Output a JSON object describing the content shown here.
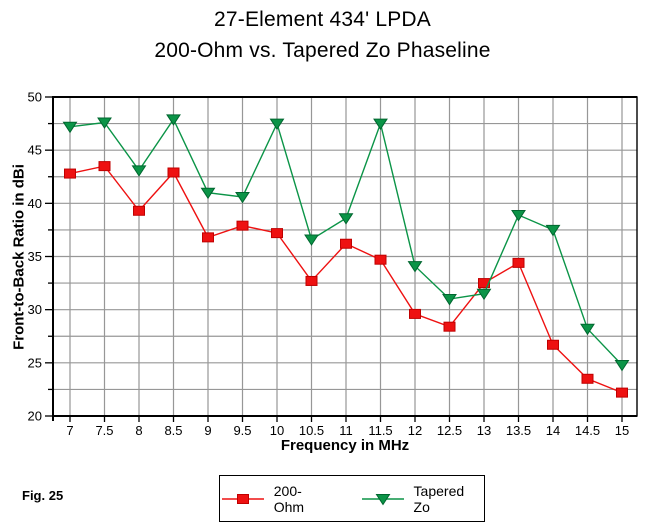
{
  "title": {
    "line1": "27-Element 434' LPDA",
    "line2": "200-Ohm vs. Tapered Zo Phaseline"
  },
  "fig_label": "Fig. 25",
  "chart_data": {
    "type": "line",
    "x": [
      7,
      7.5,
      8,
      8.5,
      9,
      9.5,
      10,
      10.5,
      11,
      11.5,
      12,
      12.5,
      13,
      13.5,
      14,
      14.5,
      15
    ],
    "series": [
      {
        "name": "200-Ohm",
        "marker": "square",
        "color": "#ee1111",
        "edge_color": "#c00000",
        "values": [
          42.8,
          43.5,
          39.3,
          42.9,
          36.8,
          37.9,
          37.2,
          32.7,
          36.2,
          34.7,
          29.6,
          28.4,
          32.5,
          34.4,
          26.7,
          23.5,
          22.2
        ]
      },
      {
        "name": "Tapered Zo",
        "marker": "triangle-down",
        "color": "#0b9447",
        "edge_color": "#00662f",
        "values": [
          47.2,
          47.6,
          43.1,
          47.9,
          41.0,
          40.6,
          47.5,
          36.6,
          38.6,
          47.5,
          34.1,
          31.0,
          31.5,
          38.9,
          37.5,
          28.2,
          24.8
        ]
      }
    ],
    "xlabel": "Frequency in MHz",
    "ylabel": "Front-to-Back Ratio in dBi",
    "xlim": [
      7,
      15
    ],
    "ylim": [
      20,
      50
    ],
    "x_ticks": [
      "7",
      "7.5",
      "8",
      "8.5",
      "9",
      "9.5",
      "10",
      "10.5",
      "11",
      "11.5",
      "12",
      "12.5",
      "13",
      "13.5",
      "14",
      "14.5",
      "15"
    ],
    "y_ticks": [
      "20",
      "25",
      "30",
      "35",
      "40",
      "45",
      "50"
    ],
    "y_major_step": 5,
    "y_grid_step": 2.5,
    "x_grid_step": 0.5,
    "grid": true,
    "grid_color": "#979797",
    "axis_color": "#000000",
    "legend_position": "bottom-center"
  }
}
